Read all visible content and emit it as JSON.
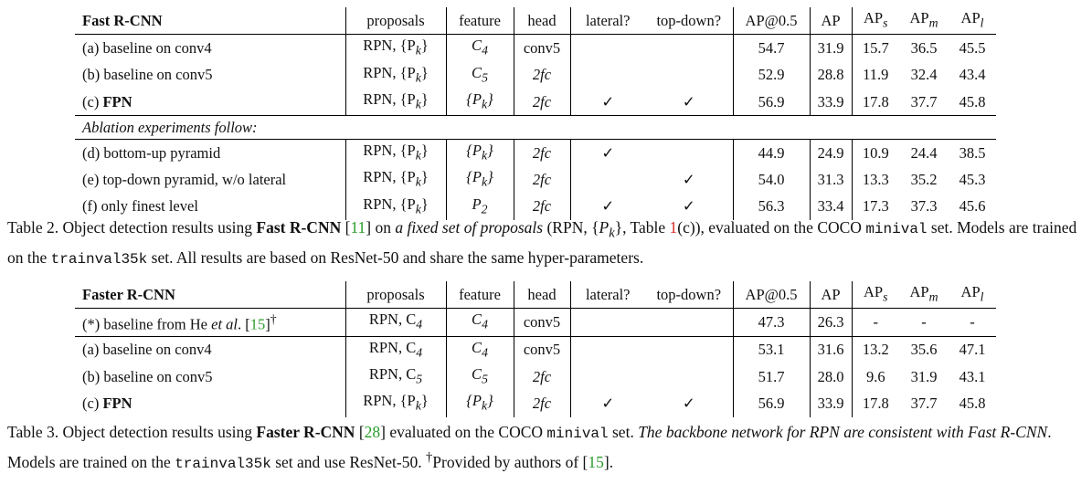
{
  "table2": {
    "title": "Fast R-CNN",
    "headers": [
      "proposals",
      "feature",
      "head",
      "lateral?",
      "top-down?",
      "AP@0.5",
      "AP",
      "AP",
      "AP",
      "AP"
    ],
    "ap_subscripts": [
      "s",
      "m",
      "l"
    ],
    "rows_a": [
      {
        "name": "(a) baseline on conv4",
        "proposals": "RPN, {P",
        "proposals_sub": "k",
        "proposals_end": "}",
        "feature": "C",
        "feature_sub": "4",
        "head": "conv5",
        "lateral": "",
        "topdown": "",
        "ap50": "54.7",
        "ap": "31.9",
        "aps": "15.7",
        "apm": "36.5",
        "apl": "45.5"
      },
      {
        "name": "(b) baseline on conv5",
        "proposals": "RPN, {P",
        "proposals_sub": "k",
        "proposals_end": "}",
        "feature": "C",
        "feature_sub": "5",
        "head": "2fc",
        "lateral": "",
        "topdown": "",
        "ap50": "52.9",
        "ap": "28.8",
        "aps": "11.9",
        "apm": "32.4",
        "apl": "43.4"
      },
      {
        "name_prefix": "(c) ",
        "name_bold": "FPN",
        "proposals": "RPN, {P",
        "proposals_sub": "k",
        "proposals_end": "}",
        "feature": "{P",
        "feature_sub": "k",
        "feature_end": "}",
        "head": "2fc",
        "lateral": "✓",
        "topdown": "✓",
        "ap50": "56.9",
        "ap": "33.9",
        "aps": "17.8",
        "apm": "37.7",
        "apl": "45.8"
      }
    ],
    "ablation_label": "Ablation experiments follow:",
    "rows_b": [
      {
        "name": "(d) bottom-up pyramid",
        "proposals": "RPN, {P",
        "proposals_sub": "k",
        "proposals_end": "}",
        "feature": "{P",
        "feature_sub": "k",
        "feature_end": "}",
        "head": "2fc",
        "lateral": "✓",
        "topdown": "",
        "ap50": "44.9",
        "ap": "24.9",
        "aps": "10.9",
        "apm": "24.4",
        "apl": "38.5"
      },
      {
        "name": "(e) top-down pyramid, w/o lateral",
        "proposals": "RPN, {P",
        "proposals_sub": "k",
        "proposals_end": "}",
        "feature": "{P",
        "feature_sub": "k",
        "feature_end": "}",
        "head": "2fc",
        "lateral": "",
        "topdown": "✓",
        "ap50": "54.0",
        "ap": "31.3",
        "aps": "13.3",
        "apm": "35.2",
        "apl": "45.3"
      },
      {
        "name": "(f) only finest level",
        "proposals": "RPN, {P",
        "proposals_sub": "k",
        "proposals_end": "}",
        "feature": "P",
        "feature_sub": "2",
        "feature_end": "",
        "head": "2fc",
        "lateral": "✓",
        "topdown": "✓",
        "ap50": "56.3",
        "ap": "33.4",
        "aps": "17.3",
        "apm": "37.3",
        "apl": "45.6"
      }
    ]
  },
  "caption2": {
    "t1": "Table 2. Object detection results using ",
    "b1": "Fast R-CNN",
    "t2": " [",
    "cite1": "11",
    "t3": "] on ",
    "i1": "a fixed set of proposals",
    "t4": " (RPN, {",
    "m1": "P",
    "m1_sub": "k",
    "t5": "}, Table ",
    "ref1": "1",
    "t6": "(c)), evaluated on the COCO ",
    "mono1": "minival",
    "t7": " set. Models are trained on the ",
    "mono2": "trainval35k",
    "t8": " set. All results are based on ResNet-50 and share the same hyper-parameters."
  },
  "table3": {
    "title": "Faster R-CNN",
    "headers": [
      "proposals",
      "feature",
      "head",
      "lateral?",
      "top-down?",
      "AP@0.5",
      "AP",
      "AP",
      "AP",
      "AP"
    ],
    "star_row": {
      "name": "(*) baseline from He ",
      "name_ital": "et al",
      "name_end": ". [",
      "cite": "15",
      "name_close": "]",
      "dagger": "†",
      "proposals": "RPN, C",
      "proposals_sub": "4",
      "feature": "C",
      "feature_sub": "4",
      "head": "conv5",
      "ap50": "47.3",
      "ap": "26.3",
      "aps": "-",
      "apm": "-",
      "apl": "-"
    },
    "rows": [
      {
        "name": "(a) baseline on conv4",
        "proposals": "RPN, C",
        "proposals_sub": "4",
        "proposals_end": "",
        "feature": "C",
        "feature_sub": "4",
        "feature_end": "",
        "head": "conv5",
        "lateral": "",
        "topdown": "",
        "ap50": "53.1",
        "ap": "31.6",
        "aps": "13.2",
        "apm": "35.6",
        "apl": "47.1"
      },
      {
        "name": "(b) baseline on conv5",
        "proposals": "RPN, C",
        "proposals_sub": "5",
        "proposals_end": "",
        "feature": "C",
        "feature_sub": "5",
        "feature_end": "",
        "head": "2fc",
        "lateral": "",
        "topdown": "",
        "ap50": "51.7",
        "ap": "28.0",
        "aps": "9.6",
        "apm": "31.9",
        "apl": "43.1"
      },
      {
        "name_prefix": "(c) ",
        "name_bold": "FPN",
        "proposals": "RPN, {P",
        "proposals_sub": "k",
        "proposals_end": "}",
        "feature": "{P",
        "feature_sub": "k",
        "feature_end": "}",
        "head": "2fc",
        "lateral": "✓",
        "topdown": "✓",
        "ap50": "56.9",
        "ap": "33.9",
        "aps": "17.8",
        "apm": "37.7",
        "apl": "45.8"
      }
    ]
  },
  "caption3": {
    "t1": "Table 3. Object detection results using ",
    "b1": "Faster R-CNN",
    "t2": " [",
    "cite1": "28",
    "t3": "] evaluated on the COCO ",
    "mono1": "minival",
    "t4": " set. ",
    "i1": "The backbone network for RPN are consistent with Fast R-CNN",
    "t5": ". Models are trained on the ",
    "mono2": "trainval35k",
    "t6": " set and use ResNet-50. ",
    "dagger": "†",
    "t7": "Provided by authors of [",
    "cite2": "15",
    "t8": "]."
  }
}
